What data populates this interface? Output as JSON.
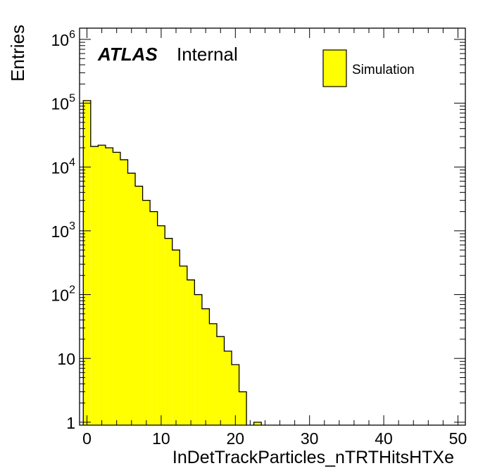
{
  "chart_data": {
    "type": "bar",
    "title": "",
    "atlas_label": "ATLAS",
    "atlas_status": "Internal",
    "xlabel": "InDetTrackParticles_nTRTHitsHTXe",
    "ylabel": "Entries",
    "xlim": [
      -1,
      51
    ],
    "ylim": [
      0.9,
      1500000
    ],
    "log_y": true,
    "bin_width": 1,
    "x_ticks": [
      0,
      10,
      20,
      30,
      40,
      50
    ],
    "x_tick_labels": [
      "0",
      "10",
      "20",
      "30",
      "40",
      "50"
    ],
    "y_ticks": [
      1,
      10,
      100,
      1000,
      10000,
      100000,
      1000000
    ],
    "y_tick_labels": [
      {
        "base": "1",
        "exp": ""
      },
      {
        "base": "10",
        "exp": ""
      },
      {
        "base": "10",
        "exp": "2"
      },
      {
        "base": "10",
        "exp": "3"
      },
      {
        "base": "10",
        "exp": "4"
      },
      {
        "base": "10",
        "exp": "5"
      },
      {
        "base": "10",
        "exp": "6"
      }
    ],
    "grid": false,
    "legend_position": "top-right",
    "series": [
      {
        "name": "Simulation",
        "color": "#ffff00",
        "edge_color": "#000000",
        "bin_low_edges": [
          -0.5,
          0.5,
          1.5,
          2.5,
          3.5,
          4.5,
          5.5,
          6.5,
          7.5,
          8.5,
          9.5,
          10.5,
          11.5,
          12.5,
          13.5,
          14.5,
          15.5,
          16.5,
          17.5,
          18.5,
          19.5,
          20.5,
          21.5,
          22.5
        ],
        "values": [
          110000,
          21000,
          22000,
          20000,
          17000,
          13000,
          8000,
          5000,
          3000,
          2000,
          1200,
          760,
          500,
          280,
          170,
          100,
          60,
          35,
          22,
          13,
          8,
          3,
          0,
          1
        ]
      }
    ]
  }
}
